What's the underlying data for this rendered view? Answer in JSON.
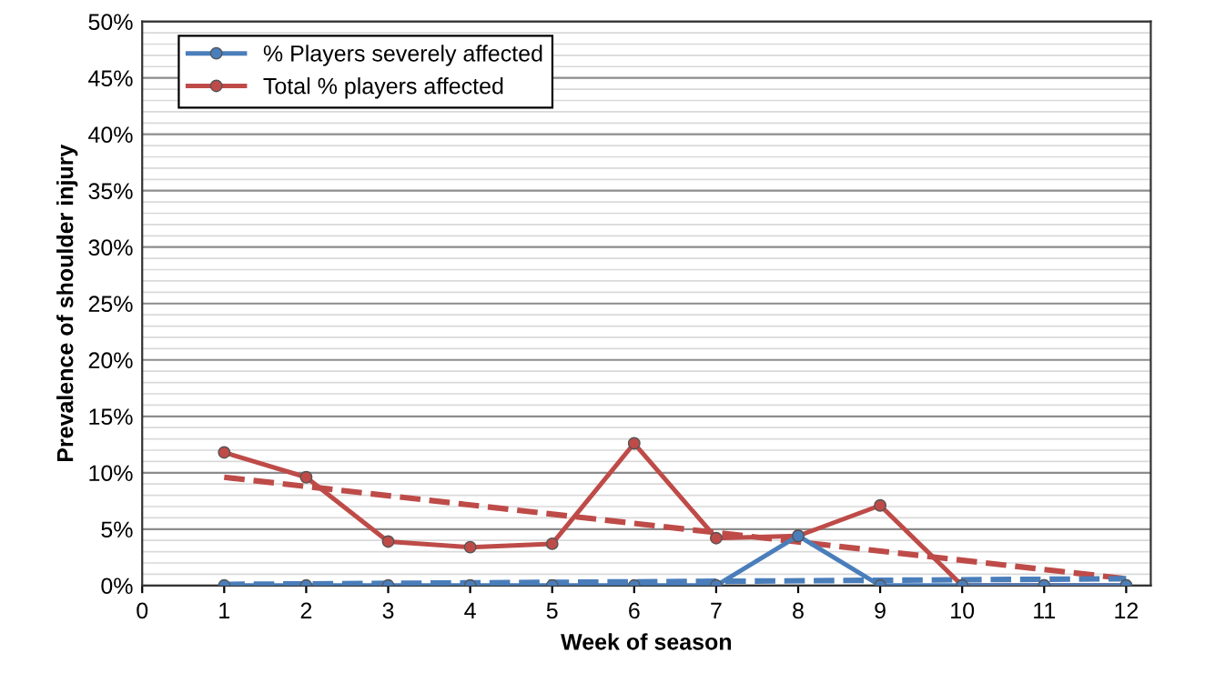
{
  "chart_data": {
    "type": "line",
    "xlabel": "Week of season",
    "ylabel": "Prevalence of shoulder injury",
    "xlim": [
      0,
      12.3
    ],
    "xticks": [
      0,
      1,
      2,
      3,
      4,
      5,
      6,
      7,
      8,
      9,
      10,
      11,
      12
    ],
    "ylim": [
      0,
      50
    ],
    "yticks": [
      {
        "value": 0,
        "label": "0%"
      },
      {
        "value": 1,
        "label": null
      },
      {
        "value": 2,
        "label": null
      },
      {
        "value": 3,
        "label": null
      },
      {
        "value": 4,
        "label": null
      },
      {
        "value": 5,
        "label": "5%"
      },
      {
        "value": 6,
        "label": null
      },
      {
        "value": 7,
        "label": null
      },
      {
        "value": 8,
        "label": null
      },
      {
        "value": 9,
        "label": null
      },
      {
        "value": 10,
        "label": "10%"
      },
      {
        "value": 11,
        "label": null
      },
      {
        "value": 12,
        "label": null
      },
      {
        "value": 13,
        "label": null
      },
      {
        "value": 14,
        "label": null
      },
      {
        "value": 15,
        "label": "15%"
      },
      {
        "value": 16,
        "label": null
      },
      {
        "value": 17,
        "label": null
      },
      {
        "value": 18,
        "label": null
      },
      {
        "value": 19,
        "label": null
      },
      {
        "value": 20,
        "label": "20%"
      },
      {
        "value": 21,
        "label": null
      },
      {
        "value": 22,
        "label": null
      },
      {
        "value": 23,
        "label": null
      },
      {
        "value": 24,
        "label": null
      },
      {
        "value": 25,
        "label": "25%"
      },
      {
        "value": 26,
        "label": null
      },
      {
        "value": 27,
        "label": null
      },
      {
        "value": 28,
        "label": null
      },
      {
        "value": 29,
        "label": null
      },
      {
        "value": 30,
        "label": "30%"
      },
      {
        "value": 31,
        "label": null
      },
      {
        "value": 32,
        "label": null
      },
      {
        "value": 33,
        "label": null
      },
      {
        "value": 34,
        "label": null
      },
      {
        "value": 35,
        "label": "35%"
      },
      {
        "value": 36,
        "label": null
      },
      {
        "value": 37,
        "label": null
      },
      {
        "value": 38,
        "label": null
      },
      {
        "value": 39,
        "label": null
      },
      {
        "value": 40,
        "label": "40%"
      },
      {
        "value": 41,
        "label": null
      },
      {
        "value": 42,
        "label": null
      },
      {
        "value": 43,
        "label": null
      },
      {
        "value": 44,
        "label": null
      },
      {
        "value": 45,
        "label": "45%"
      },
      {
        "value": 46,
        "label": null
      },
      {
        "value": 47,
        "label": null
      },
      {
        "value": 48,
        "label": null
      },
      {
        "value": 49,
        "label": null
      },
      {
        "value": 50,
        "label": "50%"
      }
    ],
    "grid": "y",
    "legend": "top left",
    "series": [
      {
        "name": "% Players severely affected",
        "color": "#4a7ebb",
        "marker": "circle",
        "line_style": "solid",
        "x": [
          1,
          2,
          3,
          4,
          5,
          6,
          7,
          8,
          9,
          10,
          11,
          12
        ],
        "values": [
          0,
          0,
          0,
          0,
          0,
          0,
          0,
          4.4,
          0,
          0,
          0,
          0
        ]
      },
      {
        "name": "Total % players affected",
        "color": "#be4b48",
        "marker": "circle",
        "line_style": "solid",
        "x": [
          1,
          2,
          3,
          4,
          5,
          6,
          7,
          8,
          9,
          10,
          11,
          12
        ],
        "values": [
          11.8,
          9.6,
          3.9,
          3.4,
          3.7,
          12.6,
          4.2,
          4.4,
          7.1,
          0,
          0,
          0
        ]
      },
      {
        "color": "#4a7ebb",
        "marker": "none",
        "line_style": "dashed",
        "x": [
          1,
          12
        ],
        "values": [
          0.1,
          0.6
        ]
      },
      {
        "color": "#be4b48",
        "marker": "none",
        "line_style": "dashed",
        "x": [
          1,
          12
        ],
        "values": [
          9.6,
          0.6
        ]
      }
    ]
  }
}
